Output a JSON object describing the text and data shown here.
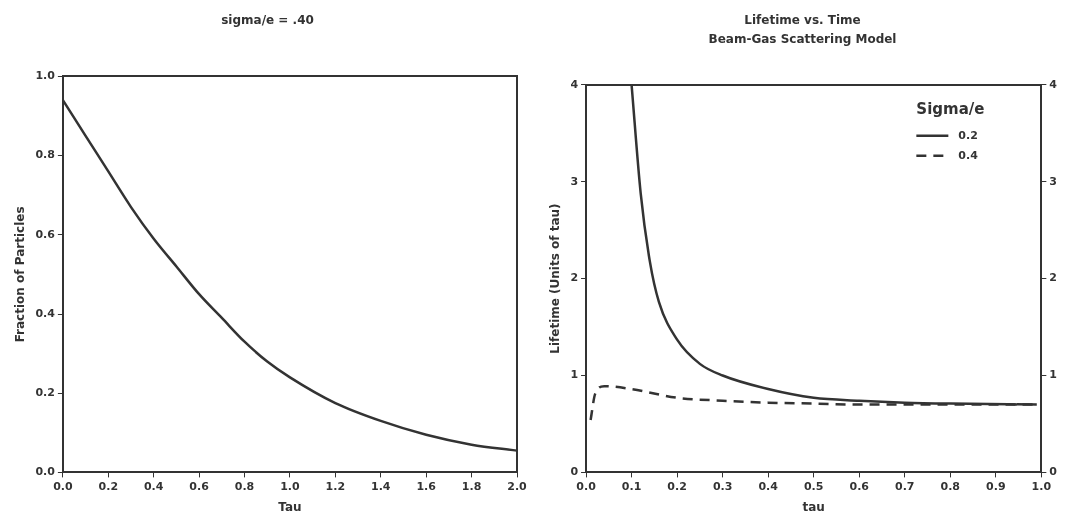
{
  "chart_data": [
    {
      "type": "line",
      "title": "sigma/e = .40",
      "xlabel": "Tau",
      "ylabel": "Fraction of Particles",
      "xlim": [
        0,
        2
      ],
      "ylim": [
        0,
        1
      ],
      "xticks": [
        {
          "value": 0,
          "label": "0.0"
        },
        {
          "value": 0.2,
          "label": "0.2"
        },
        {
          "value": 0.4,
          "label": "0.4"
        },
        {
          "value": 0.6,
          "label": "0.6"
        },
        {
          "value": 0.8,
          "label": "0.8"
        },
        {
          "value": 1,
          "label": "1.0"
        },
        {
          "value": 1.2,
          "label": "1.2"
        },
        {
          "value": 1.4,
          "label": "1.4"
        },
        {
          "value": 1.6,
          "label": "1.6"
        },
        {
          "value": 1.8,
          "label": "1.8"
        },
        {
          "value": 2,
          "label": "2.0"
        }
      ],
      "yticks": [
        {
          "value": 0,
          "label": "0.0"
        },
        {
          "value": 0.2,
          "label": "0.2"
        },
        {
          "value": 0.4,
          "label": "0.4"
        },
        {
          "value": 0.6,
          "label": "0.6"
        },
        {
          "value": 0.8,
          "label": "0.8"
        },
        {
          "value": 1,
          "label": "1.0"
        }
      ],
      "x": [
        0,
        0.1,
        0.2,
        0.3,
        0.4,
        0.5,
        0.6,
        0.7,
        0.8,
        0.9,
        1.0,
        1.2,
        1.4,
        1.6,
        1.8,
        2.0
      ],
      "series": [
        {
          "color": "#333333",
          "values": [
            0.94,
            0.85,
            0.76,
            0.67,
            0.59,
            0.52,
            0.45,
            0.39,
            0.33,
            0.28,
            0.24,
            0.175,
            0.13,
            0.095,
            0.07,
            0.055
          ]
        }
      ],
      "grid": false,
      "legend": false,
      "marker": "none"
    },
    {
      "type": "line",
      "title": "Lifetime vs. Time",
      "subtitle": "Beam-Gas Scattering Model",
      "xlabel": "tau",
      "ylabel": "Lifetime (Units of tau)",
      "legend_title": "Sigma/e",
      "xlim": [
        0,
        1
      ],
      "ylim": [
        0,
        4
      ],
      "y2lim": [
        0,
        4
      ],
      "xticks": [
        {
          "value": 0,
          "label": "0.0"
        },
        {
          "value": 0.1,
          "label": "0.1"
        },
        {
          "value": 0.2,
          "label": "0.2"
        },
        {
          "value": 0.3,
          "label": "0.3"
        },
        {
          "value": 0.4,
          "label": "0.4"
        },
        {
          "value": 0.5,
          "label": "0.5"
        },
        {
          "value": 0.6,
          "label": "0.6"
        },
        {
          "value": 0.7,
          "label": "0.7"
        },
        {
          "value": 0.8,
          "label": "0.8"
        },
        {
          "value": 0.9,
          "label": "0.9"
        },
        {
          "value": 1,
          "label": "1.0"
        }
      ],
      "yticks": [
        0,
        1,
        2,
        3,
        4
      ],
      "y2ticks": [
        0,
        1,
        2,
        3,
        4
      ],
      "series": [
        {
          "name": "0.2",
          "color": "#333333",
          "line_style": "solid",
          "x": [
            0.1,
            0.12,
            0.14,
            0.16,
            0.2,
            0.25,
            0.3,
            0.4,
            0.5,
            0.6,
            0.7,
            0.8,
            0.99
          ],
          "values": [
            4,
            2.88,
            2.18,
            1.76,
            1.37,
            1.12,
            1.0,
            0.86,
            0.77,
            0.74,
            0.72,
            0.71,
            0.7
          ]
        },
        {
          "name": "0.4",
          "color": "#333333",
          "line_style": "dashed",
          "x": [
            0.01,
            0.02,
            0.04,
            0.1,
            0.2,
            0.3,
            0.4,
            0.5,
            0.6,
            0.8,
            0.99
          ],
          "values": [
            0.54,
            0.81,
            0.89,
            0.86,
            0.77,
            0.74,
            0.72,
            0.71,
            0.7,
            0.7,
            0.7
          ]
        }
      ],
      "grid": false,
      "legend": "top right",
      "marker": "none"
    }
  ]
}
